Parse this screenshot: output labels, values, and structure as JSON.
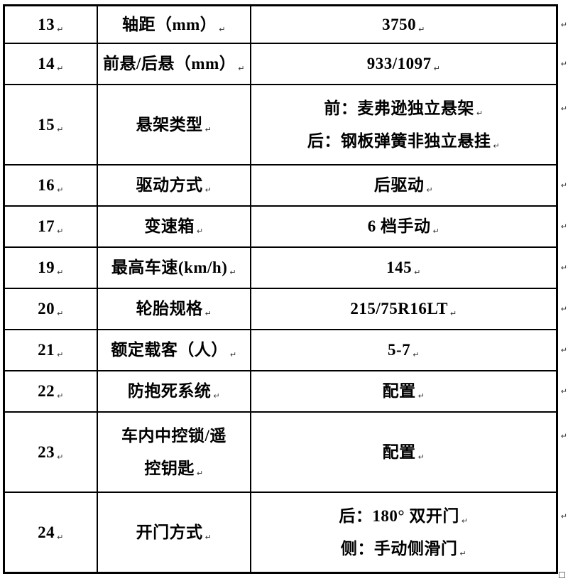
{
  "page": {
    "background_color": "#ffffff",
    "border_color": "#000000",
    "text_color": "#000000"
  },
  "marks": {
    "paragraph_mark": "↵"
  },
  "table": {
    "columns": [
      "row-number",
      "spec-name",
      "spec-value"
    ],
    "rows": [
      {
        "num": "13",
        "label": [
          "轴距（mm）"
        ],
        "value": [
          "3750"
        ],
        "tall": false
      },
      {
        "num": "14",
        "label": [
          "前悬/后悬（mm）"
        ],
        "value": [
          "933/1097"
        ],
        "tall": false
      },
      {
        "num": "15",
        "label": [
          "悬架类型"
        ],
        "value": [
          "前：麦弗逊独立悬架",
          "后：钢板弹簧非独立悬挂"
        ],
        "tall": true
      },
      {
        "num": "16",
        "label": [
          "驱动方式"
        ],
        "value": [
          "后驱动"
        ],
        "tall": false
      },
      {
        "num": "17",
        "label": [
          "变速箱"
        ],
        "value": [
          "6 档手动"
        ],
        "tall": false
      },
      {
        "num": "19",
        "label": [
          "最高车速(km/h)"
        ],
        "value": [
          "145"
        ],
        "tall": false
      },
      {
        "num": "20",
        "label": [
          "轮胎规格"
        ],
        "value": [
          "215/75R16LT"
        ],
        "tall": false
      },
      {
        "num": "21",
        "label": [
          "额定载客（人）"
        ],
        "value": [
          "5-7"
        ],
        "tall": false
      },
      {
        "num": "22",
        "label": [
          "防抱死系统"
        ],
        "value": [
          "配置"
        ],
        "tall": false
      },
      {
        "num": "23",
        "label": [
          "车内中控锁/遥",
          "控钥匙"
        ],
        "value": [
          "配置"
        ],
        "tall": true
      },
      {
        "num": "24",
        "label": [
          "开门方式"
        ],
        "value": [
          "后：180° 双开门",
          "侧：手动侧滑门"
        ],
        "tall": true
      }
    ]
  }
}
